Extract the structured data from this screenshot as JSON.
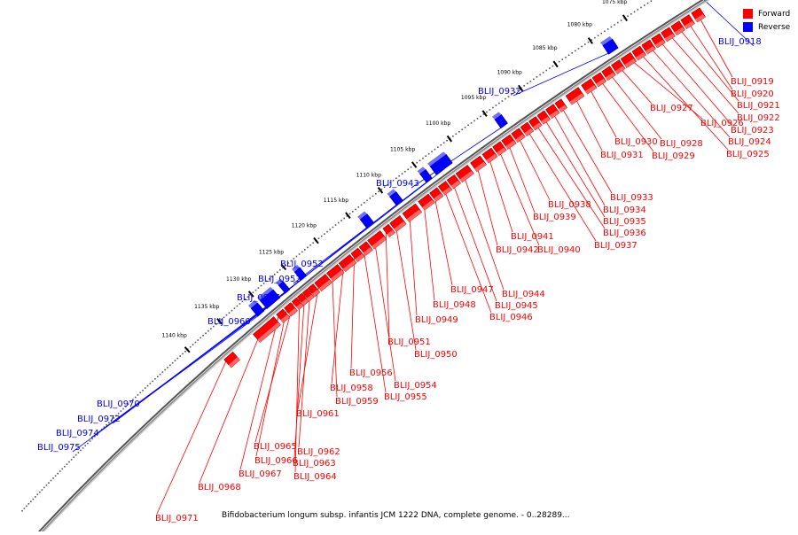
{
  "legend": {
    "forward_label": "Forward",
    "reverse_label": "Reverse",
    "forward_color": "#ff0000",
    "reverse_color": "#0000ff"
  },
  "caption": "Bifidobacterium longum subsp. infantis JCM 1222 DNA, complete genome. - 0..28289...",
  "kbp_ticks": [
    "1070 kbp",
    "1075 kbp",
    "1080 kbp",
    "1085 kbp",
    "1090 kbp",
    "1095 kbp",
    "1100 kbp",
    "1105 kbp",
    "1110 kbp",
    "1115 kbp",
    "1120 kbp",
    "1125 kbp",
    "1130 kbp",
    "1135 kbp",
    "1140 kbp"
  ],
  "genes_forward": [
    "BLIJ_0919",
    "BLIJ_0920",
    "BLIJ_0921",
    "BLIJ_0922",
    "BLIJ_0923",
    "BLIJ_0924",
    "BLIJ_0925",
    "BLIJ_0926",
    "BLIJ_0927",
    "BLIJ_0928",
    "BLIJ_0929",
    "BLIJ_0930",
    "BLIJ_0931",
    "BLIJ_0933",
    "BLIJ_0934",
    "BLIJ_0935",
    "BLIJ_0936",
    "BLIJ_0937",
    "BLIJ_0938",
    "BLIJ_0939",
    "BLIJ_0940",
    "BLIJ_0941",
    "BLIJ_0942",
    "BLIJ_0944",
    "BLIJ_0945",
    "BLIJ_0946",
    "BLIJ_0947",
    "BLIJ_0948",
    "BLIJ_0949",
    "BLIJ_0950",
    "BLIJ_0951",
    "BLIJ_0954",
    "BLIJ_0955",
    "BLIJ_0956",
    "BLIJ_0958",
    "BLIJ_0959",
    "BLIJ_0961",
    "BLIJ_0962",
    "BLIJ_0963",
    "BLIJ_0964",
    "BLIJ_0965",
    "BLIJ_0966",
    "BLIJ_0967",
    "BLIJ_0968",
    "BLIJ_0971"
  ],
  "genes_reverse": [
    "BLIJ_0918",
    "BLIJ_0932",
    "BLIJ_0943",
    "BLIJ_0952",
    "BLIJ_0953",
    "BLIJ_0957",
    "BLIJ_0960",
    "BLIJ_0970",
    "BLIJ_0972",
    "BLIJ_0974",
    "BLIJ_0975"
  ]
}
